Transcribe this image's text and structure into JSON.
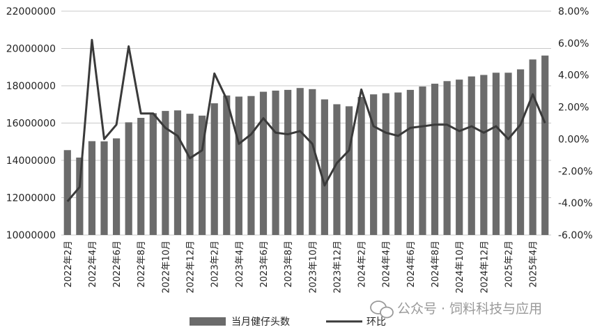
{
  "chart_data": {
    "type": "bar",
    "categories": [
      "2022年2月",
      "2022年3月",
      "2022年4月",
      "2022年5月",
      "2022年6月",
      "2022年7月",
      "2022年8月",
      "2022年9月",
      "2022年10月",
      "2022年11月",
      "2022年12月",
      "2023年1月",
      "2023年2月",
      "2023年3月",
      "2023年4月",
      "2023年5月",
      "2023年6月",
      "2023年7月",
      "2023年8月",
      "2023年9月",
      "2023年10月",
      "2023年11月",
      "2023年12月",
      "2024年1月",
      "2024年2月",
      "2024年3月",
      "2024年4月",
      "2024年5月",
      "2024年6月",
      "2024年7月",
      "2024年8月",
      "2024年9月",
      "2024年10月",
      "2024年11月",
      "2024年12月",
      "2025年1月",
      "2025年2月",
      "2025年3月",
      "2025年4月",
      "2025年5月"
    ],
    "x_tick_labels": [
      "2022年2月",
      "2022年4月",
      "2022年6月",
      "2022年8月",
      "2022年10月",
      "2022年12月",
      "2023年2月",
      "2023年4月",
      "2023年6月",
      "2023年8月",
      "2023年10月",
      "2023年12月",
      "2024年2月",
      "2024年4月",
      "2024年6月",
      "2024年8月",
      "2024年10月",
      "2024年12月",
      "2025年2月",
      "2025年4月"
    ],
    "series": [
      {
        "name": "当月健仔头数",
        "type": "bar",
        "axis": "left",
        "color": "#6b6b6b",
        "values": [
          14550000,
          14150000,
          15030000,
          15020000,
          15180000,
          16040000,
          16280000,
          16530000,
          16650000,
          16680000,
          16500000,
          16400000,
          17060000,
          17480000,
          17420000,
          17450000,
          17680000,
          17740000,
          17780000,
          17880000,
          17820000,
          17270000,
          17010000,
          16900000,
          17400000,
          17540000,
          17600000,
          17640000,
          17780000,
          17960000,
          18110000,
          18250000,
          18330000,
          18500000,
          18580000,
          18700000,
          18700000,
          18880000,
          19410000,
          19620000
        ]
      },
      {
        "name": "环比",
        "type": "line",
        "axis": "right",
        "color": "#3a3a3a",
        "values": [
          -3.9,
          -3.0,
          6.2,
          0.0,
          0.9,
          5.8,
          1.6,
          1.6,
          0.7,
          0.2,
          -1.2,
          -0.7,
          4.1,
          2.5,
          -0.3,
          0.3,
          1.3,
          0.4,
          0.3,
          0.5,
          -0.3,
          -2.9,
          -1.5,
          -0.7,
          3.1,
          0.8,
          0.4,
          0.2,
          0.7,
          0.8,
          0.9,
          0.9,
          0.5,
          0.8,
          0.4,
          0.8,
          0.0,
          0.9,
          2.8,
          1.0
        ]
      }
    ],
    "y_left": {
      "min": 10000000,
      "max": 22000000,
      "step": 2000000,
      "tick_labels": [
        "10000000",
        "12000000",
        "14000000",
        "16000000",
        "18000000",
        "20000000",
        "22000000"
      ]
    },
    "y_right": {
      "min": -6,
      "max": 8,
      "step": 2,
      "tick_labels": [
        "-6.00%",
        "-4.00%",
        "-2.00%",
        "0.00%",
        "2.00%",
        "4.00%",
        "6.00%",
        "8.00%"
      ]
    },
    "grid": true,
    "legend_position": "bottom",
    "title": "",
    "xlabel": "",
    "ylabel": ""
  },
  "watermark": {
    "text": "公众号 · 饲料科技与应用",
    "icon": "wechat-icon"
  }
}
